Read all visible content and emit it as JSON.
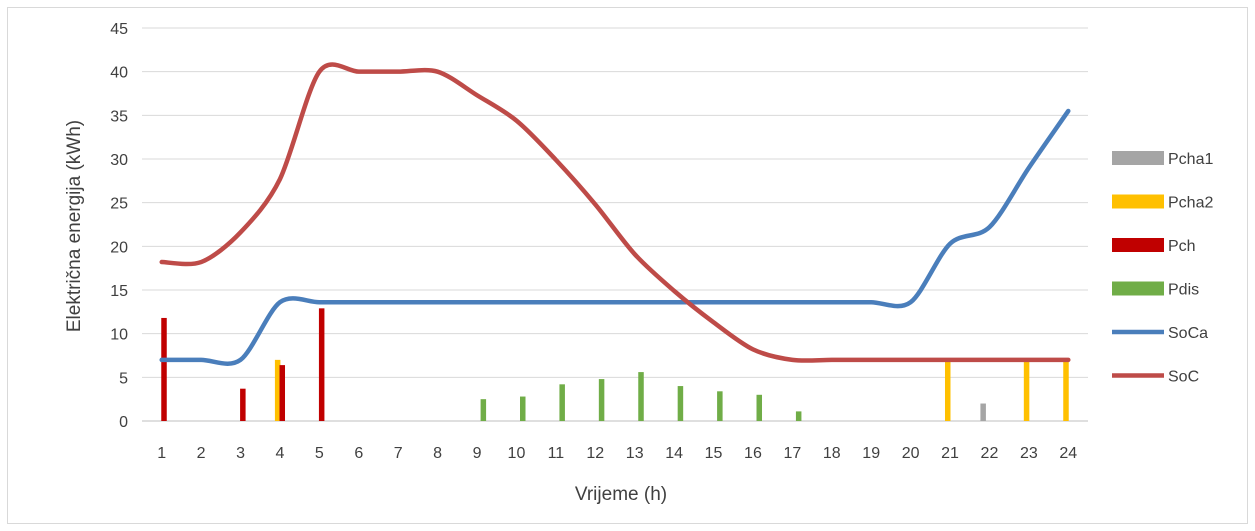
{
  "chart_data": {
    "type": "bar",
    "title": "",
    "xlabel": "Vrijeme (h)",
    "ylabel": "Električna energija (kWh)",
    "ylim": [
      0,
      45
    ],
    "yticks": [
      0,
      5,
      10,
      15,
      20,
      25,
      30,
      35,
      40,
      45
    ],
    "grid": true,
    "legend_position": "right",
    "categories": [
      "1",
      "2",
      "3",
      "4",
      "5",
      "6",
      "7",
      "8",
      "9",
      "10",
      "11",
      "12",
      "13",
      "14",
      "15",
      "16",
      "17",
      "18",
      "19",
      "20",
      "21",
      "22",
      "23",
      "24"
    ],
    "series": [
      {
        "name": "Pcha1",
        "kind": "bar",
        "color": "#a5a5a5",
        "values": [
          0,
          0,
          0,
          0,
          0,
          0,
          0,
          0,
          0,
          0,
          0,
          0,
          0,
          0,
          0,
          0,
          0,
          0,
          0,
          0,
          0,
          2,
          0,
          0
        ]
      },
      {
        "name": "Pcha2",
        "kind": "bar",
        "color": "#ffc000",
        "values": [
          0,
          0,
          0,
          7,
          0,
          0,
          0,
          0,
          0,
          0,
          0,
          0,
          0,
          0,
          0,
          0,
          0,
          0,
          0,
          0,
          7,
          0,
          7,
          7
        ]
      },
      {
        "name": "Pch",
        "kind": "bar",
        "color": "#c00000",
        "values": [
          11.8,
          0,
          3.7,
          6.4,
          12.9,
          0,
          0,
          0,
          0,
          0,
          0,
          0,
          0,
          0,
          0,
          0,
          0,
          0,
          0,
          0,
          0,
          0,
          0,
          0
        ]
      },
      {
        "name": "Pdis",
        "kind": "bar",
        "color": "#70ad47",
        "values": [
          0,
          0,
          0,
          0,
          0,
          0,
          0,
          0,
          2.5,
          2.8,
          4.2,
          4.8,
          5.6,
          4,
          3.4,
          3,
          1.1,
          0,
          0,
          0,
          0,
          0,
          0,
          0
        ]
      },
      {
        "name": "SoCa",
        "kind": "line",
        "color": "#4a7ebb",
        "values": [
          7,
          7,
          7,
          13.6,
          13.6,
          13.6,
          13.6,
          13.6,
          13.6,
          13.6,
          13.6,
          13.6,
          13.6,
          13.6,
          13.6,
          13.6,
          13.6,
          13.6,
          13.6,
          13.6,
          20.3,
          22.2,
          29,
          35.5
        ]
      },
      {
        "name": "SoC",
        "kind": "line",
        "color": "#be4b48",
        "values": [
          18.2,
          18.2,
          21.6,
          27.7,
          40,
          40,
          40,
          40,
          37.3,
          34.4,
          29.9,
          24.8,
          19.1,
          14.9,
          11.3,
          8.2,
          7,
          7,
          7,
          7,
          7,
          7,
          7,
          7
        ]
      }
    ]
  }
}
